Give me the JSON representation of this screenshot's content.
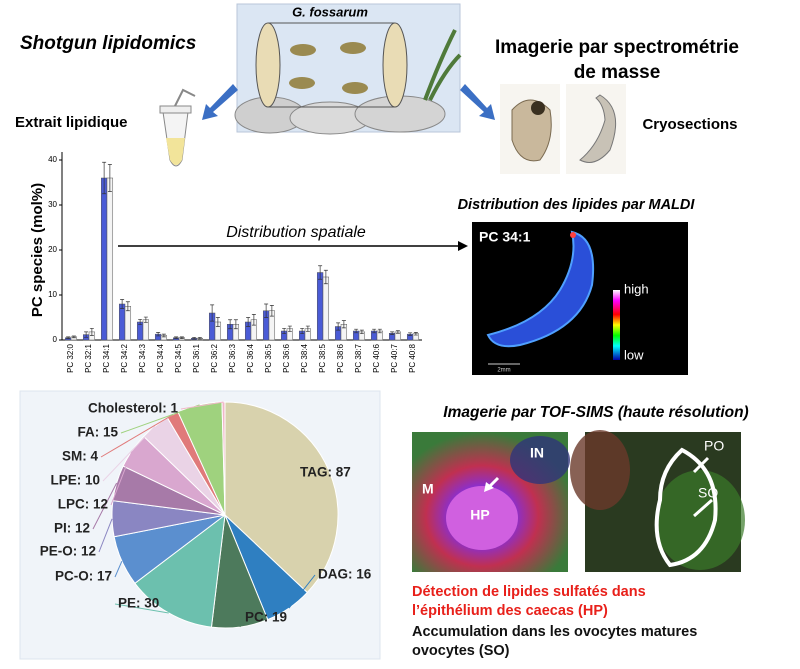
{
  "header": {
    "left_title": "Shotgun lipidomics",
    "species": "G. fossarum",
    "right_title_line1": "Imagerie par spectrométrie",
    "right_title_line2": "de masse",
    "extract_label": "Extrait lipidique",
    "cryo_label": "Cryosections"
  },
  "bar_chart": {
    "ylabel": "PC species (mol%)",
    "ylim": [
      0,
      40
    ],
    "yticks": [
      0,
      10,
      20,
      30,
      40
    ],
    "categories": [
      "PC 32:0",
      "PC 32:1",
      "PC 34:1",
      "PC 34:2",
      "PC 34:3",
      "PC 34:4",
      "PC 34:5",
      "PC 36:1",
      "PC 36:2",
      "PC 36:3",
      "PC 36:4",
      "PC 36:5",
      "PC 36:6",
      "PC 38:4",
      "PC 38:5",
      "PC 38:6",
      "PC 38:7",
      "PC 40:6",
      "PC 40:7",
      "PC 40:8"
    ],
    "series": [
      {
        "color": "#4a5bd6",
        "values": [
          0.5,
          1.2,
          36,
          8,
          4,
          1.3,
          0.5,
          0.4,
          6,
          3.5,
          4,
          6.5,
          2,
          2,
          15,
          3,
          2,
          2,
          1.5,
          1.3
        ],
        "errors": [
          0.2,
          0.6,
          3.5,
          1,
          0.6,
          0.4,
          0.2,
          0.2,
          1.8,
          1,
          1,
          1.5,
          0.6,
          0.6,
          1.5,
          0.8,
          0.4,
          0.4,
          0.3,
          0.3
        ]
      },
      {
        "color": "#f4f4f4",
        "values": [
          0.7,
          1.8,
          36,
          7.5,
          4.5,
          1,
          0.5,
          0.4,
          4,
          3.5,
          4.5,
          6.5,
          2.5,
          2.5,
          14,
          3.5,
          1.8,
          2,
          1.8,
          1.4
        ],
        "errors": [
          0.2,
          0.8,
          3,
          1,
          0.6,
          0.3,
          0.2,
          0.2,
          1,
          1,
          1.2,
          1.2,
          0.6,
          0.6,
          1.5,
          0.8,
          0.4,
          0.4,
          0.3,
          0.3
        ]
      }
    ]
  },
  "arrow_label": "Distribution spatiale",
  "maldi": {
    "title": "Distribution des lipides par MALDI",
    "species_label": "PC 34:1",
    "high": "high",
    "low": "low",
    "scale": "2mm"
  },
  "pie_chart": {
    "slices": [
      {
        "label": "TAG: 87",
        "value": 87,
        "color": "#d8d2ad"
      },
      {
        "label": "DAG: 16",
        "value": 16,
        "color": "#2f7fc1"
      },
      {
        "label": "PC: 19",
        "value": 19,
        "color": "#4d7a5c"
      },
      {
        "label": "PE: 30",
        "value": 30,
        "color": "#6cc0ae"
      },
      {
        "label": "PC-O: 17",
        "value": 17,
        "color": "#5b8fcf"
      },
      {
        "label": "PE-O: 12",
        "value": 12,
        "color": "#8a86c2"
      },
      {
        "label": "PI: 12",
        "value": 12,
        "color": "#a77aa8"
      },
      {
        "label": "LPC: 12",
        "value": 12,
        "color": "#d9a7cf"
      },
      {
        "label": "LPE: 10",
        "value": 10,
        "color": "#ead3e6"
      },
      {
        "label": "SM: 4",
        "value": 4,
        "color": "#e07a7a"
      },
      {
        "label": "FA: 15",
        "value": 15,
        "color": "#9fd27e"
      },
      {
        "label": "Cholesterol: 1",
        "value": 1,
        "color": "#f0b8c8"
      }
    ]
  },
  "tofsims": {
    "title": "Imagerie par TOF-SIMS (haute résolution)",
    "img1_labels": [
      "M",
      "HP",
      "IN"
    ],
    "img2_labels": [
      "PO",
      "SO"
    ],
    "caption_red_1": "Détection de lipides sulfatés dans",
    "caption_red_2": "l’épithélium des caecas (HP)",
    "caption_black_1": "Accumulation dans les ovocytes matures",
    "caption_black_2": "ovocytes (SO)"
  }
}
